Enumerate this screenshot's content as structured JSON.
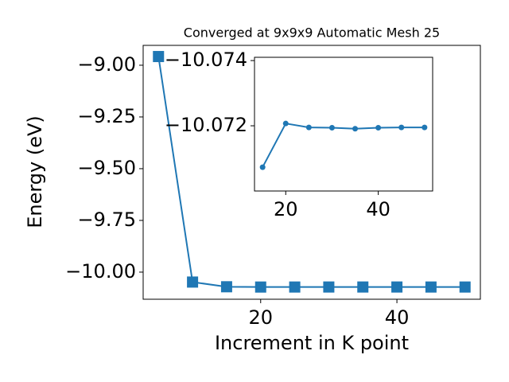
{
  "chart_data": [
    {
      "type": "line",
      "title": "Converged at 9x9x9 Automatic Mesh 25",
      "xlabel": "Increment in K point",
      "ylabel": "Energy (eV)",
      "x": [
        5,
        10,
        15,
        20,
        25,
        30,
        35,
        40,
        45,
        50
      ],
      "series": [
        {
          "color": "#1f77b4",
          "marker": "square",
          "values": [
            -8.958,
            -10.048,
            -10.0707,
            -10.0721,
            -10.072,
            -10.0719,
            -10.0719,
            -10.0719,
            -10.072,
            -10.072
          ]
        }
      ],
      "xlim": [
        2.75,
        52.25
      ],
      "xticks": [
        20,
        40
      ],
      "ylim": [
        -10.131,
        -8.904
      ],
      "yticks": [
        {
          "value": -10.0,
          "label": "−10.00"
        },
        {
          "value": -9.75,
          "label": "−9.75"
        },
        {
          "value": -9.5,
          "label": "−9.50"
        },
        {
          "value": -9.25,
          "label": "−9.25"
        },
        {
          "value": -9.0,
          "label": "−9.00"
        }
      ]
    },
    {
      "type": "line",
      "x": [
        15,
        20,
        25,
        30,
        35,
        40,
        45,
        50
      ],
      "series": [
        {
          "color": "#1f77b4",
          "marker": "circle",
          "values": [
            -10.07073,
            -10.07207,
            -10.07195,
            -10.07194,
            -10.07191,
            -10.07194,
            -10.07195,
            -10.07195
          ]
        }
      ],
      "xlim": [
        13.25,
        51.75
      ],
      "xticks": [
        20,
        40
      ],
      "ylim": [
        -10.07,
        -10.0741
      ],
      "yticks": [
        {
          "value": -10.072,
          "label": "−10.072"
        },
        {
          "value": -10.074,
          "label": "−10.074"
        }
      ]
    }
  ]
}
